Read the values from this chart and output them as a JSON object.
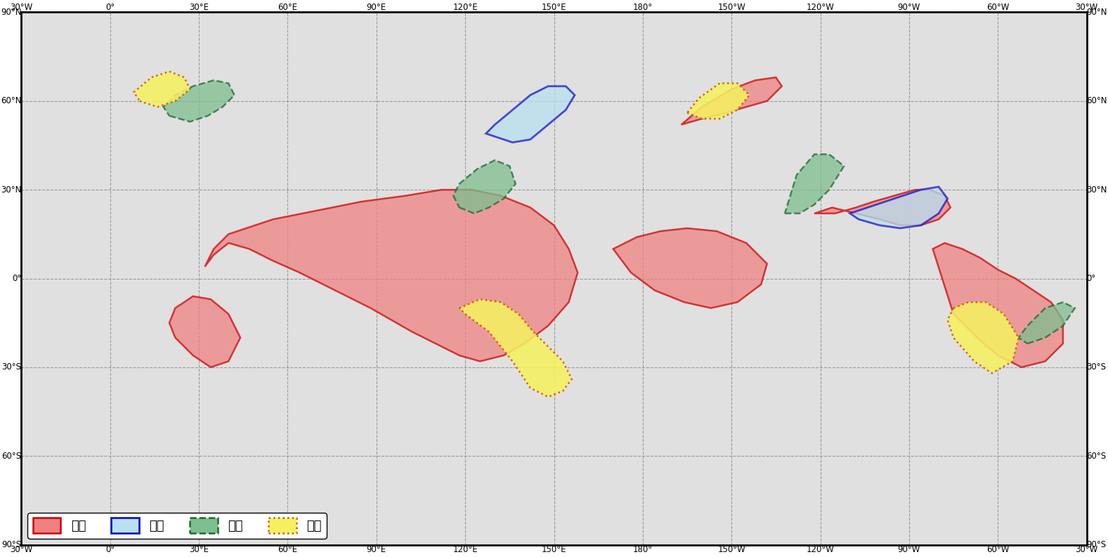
{
  "figsize": [
    15.77,
    7.93
  ],
  "dpi": 100,
  "bg_color": "#e0e0e0",
  "land_color": "#f0f0eb",
  "border_color": "#444444",
  "coast_color": "#111111",
  "grid_color": "#888888",
  "lon_min": -30,
  "lon_max": 330,
  "lat_min": -90,
  "lat_max": 90,
  "xticks": [
    -30,
    0,
    30,
    60,
    90,
    120,
    150,
    180,
    210,
    240,
    270,
    300,
    330
  ],
  "xlabels": [
    "30°W",
    "0°",
    "30°E",
    "60°E",
    "90°E",
    "120°E",
    "150°E",
    "180°",
    "150°W",
    "120°W",
    "90°W",
    "60°W",
    "30°W"
  ],
  "yticks": [
    -90,
    -60,
    -30,
    0,
    30,
    60,
    90
  ],
  "ylabels": [
    "90°S",
    "60°S",
    "30°S",
    "0°",
    "30°N",
    "60°N",
    "90°N"
  ],
  "high_temp_color": "#f08080",
  "high_temp_edge": "#cc0000",
  "low_temp_color": "#b8e0f0",
  "low_temp_edge": "#1515cc",
  "high_rain_color": "#7dbf8e",
  "high_rain_edge": "#226633",
  "low_rain_color": "#f5f060",
  "low_rain_edge": "#cc5500",
  "legend_labels": [
    "高温",
    "低温",
    "多雨",
    "少雨"
  ]
}
